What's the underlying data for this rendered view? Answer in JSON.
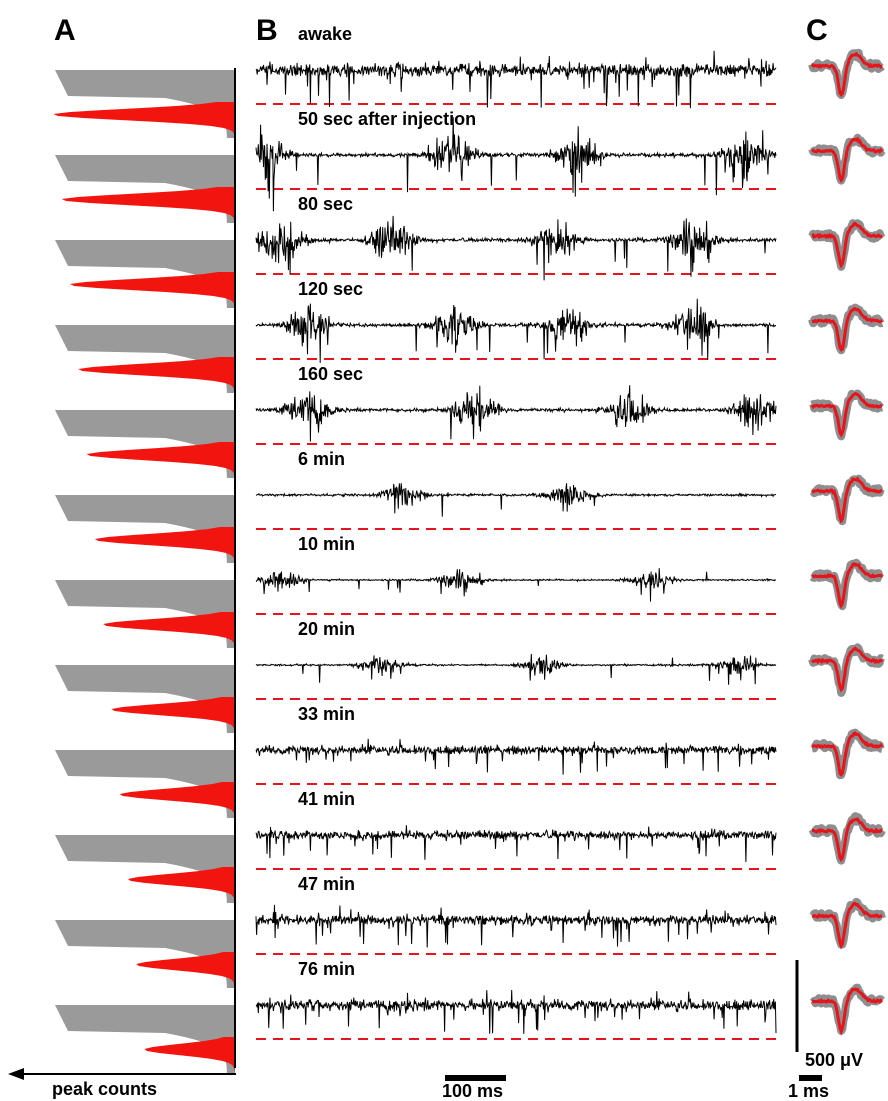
{
  "panels": {
    "a": "A",
    "b": "B",
    "c": "C"
  },
  "colors": {
    "trace": "#000000",
    "threshold": "#e8141b",
    "hist_gray": "#9a9a9a",
    "hist_red": "#f2150f",
    "waveform_mean": "#e8141b",
    "waveform_band": "#8e8e8e"
  },
  "panel_a": {
    "axis_label": "peak counts"
  },
  "recordings": [
    {
      "label": "awake",
      "kind": "tonic",
      "amp": 0.9,
      "bursts": []
    },
    {
      "label": "50 sec after injection",
      "kind": "burst",
      "amp": 1.0,
      "bursts": [
        0.02,
        0.38,
        0.62,
        0.94
      ]
    },
    {
      "label": "80 sec",
      "kind": "burst",
      "amp": 1.0,
      "bursts": [
        0.05,
        0.26,
        0.58,
        0.84
      ]
    },
    {
      "label": "120 sec",
      "kind": "burst",
      "amp": 0.9,
      "bursts": [
        0.1,
        0.38,
        0.6,
        0.84
      ]
    },
    {
      "label": "160 sec",
      "kind": "burst",
      "amp": 0.85,
      "bursts": [
        0.1,
        0.42,
        0.72,
        0.96
      ]
    },
    {
      "label": "6 min",
      "kind": "burst",
      "amp": 0.6,
      "bursts": [
        0.28,
        0.6
      ]
    },
    {
      "label": "10 min",
      "kind": "burst",
      "amp": 0.45,
      "bursts": [
        0.05,
        0.39,
        0.76
      ]
    },
    {
      "label": "20 min",
      "kind": "burst",
      "amp": 0.45,
      "bursts": [
        0.24,
        0.55,
        0.92
      ]
    },
    {
      "label": "33 min",
      "kind": "tonic",
      "amp": 0.6,
      "bursts": []
    },
    {
      "label": "41 min",
      "kind": "tonic",
      "amp": 0.6,
      "bursts": []
    },
    {
      "label": "47 min",
      "kind": "tonic",
      "amp": 0.7,
      "bursts": []
    },
    {
      "label": "76 min",
      "kind": "tonic",
      "amp": 0.75,
      "bursts": []
    }
  ],
  "scale_bars": {
    "time": "100 ms",
    "waveform_time": "1 ms",
    "voltage": "500 μV"
  }
}
